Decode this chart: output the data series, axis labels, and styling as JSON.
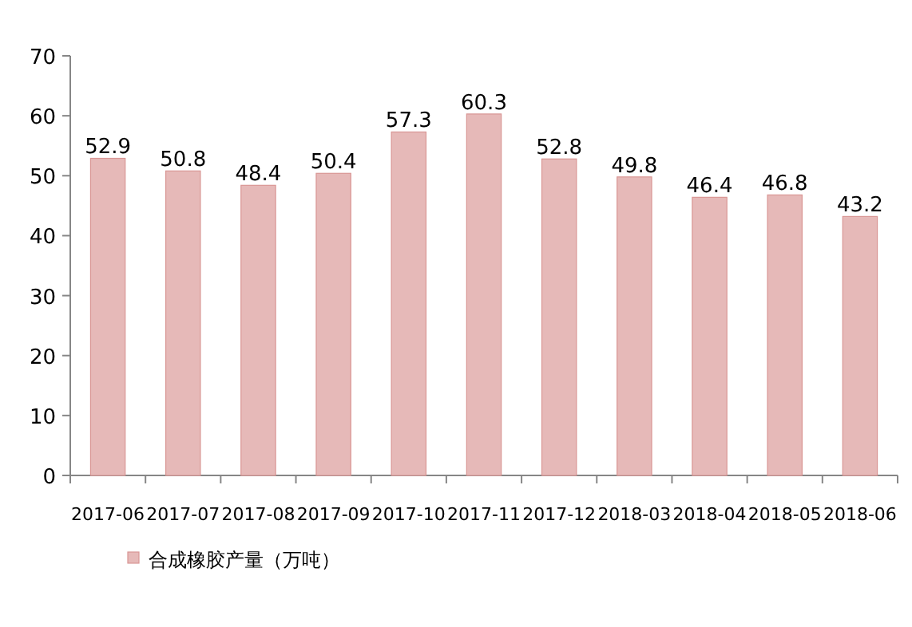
{
  "chart_data": {
    "type": "bar",
    "categories": [
      "2017-06",
      "2017-07",
      "2017-08",
      "2017-09",
      "2017-10",
      "2017-11",
      "2017-12",
      "2018-03",
      "2018-04",
      "2018-05",
      "2018-06"
    ],
    "series": [
      {
        "name": "合成橡胶产量（万吨）",
        "color": "#e6b9b8",
        "values": [
          52.9,
          50.8,
          48.4,
          50.4,
          57.3,
          60.3,
          52.8,
          49.8,
          46.4,
          46.8,
          43.2
        ]
      }
    ],
    "ylim": [
      0,
      70
    ],
    "yticks": [
      0,
      10,
      20,
      30,
      40,
      50,
      60,
      70
    ],
    "data_labels": true,
    "legend": "bottom left",
    "grid": false
  }
}
